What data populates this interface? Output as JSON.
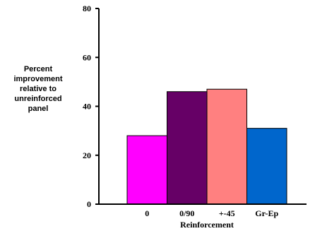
{
  "chart_data": {
    "type": "bar",
    "categories": [
      "0",
      "0/90",
      "+-45",
      "Gr-Ep"
    ],
    "values": [
      28,
      46,
      47,
      31
    ],
    "colors": [
      "#ff00ff",
      "#660066",
      "#ff8080",
      "#0066cc"
    ],
    "xlabel": "Reinforcement",
    "ylabel_lines": [
      "Percent",
      "improvement",
      "relative to",
      "unreinforced",
      "panel"
    ],
    "ylim": [
      0,
      80
    ],
    "yticks": [
      "0",
      "20",
      "40",
      "60",
      "80"
    ],
    "ytick_values": [
      0,
      20,
      40,
      60,
      80
    ],
    "grid": false,
    "legend": "none"
  }
}
